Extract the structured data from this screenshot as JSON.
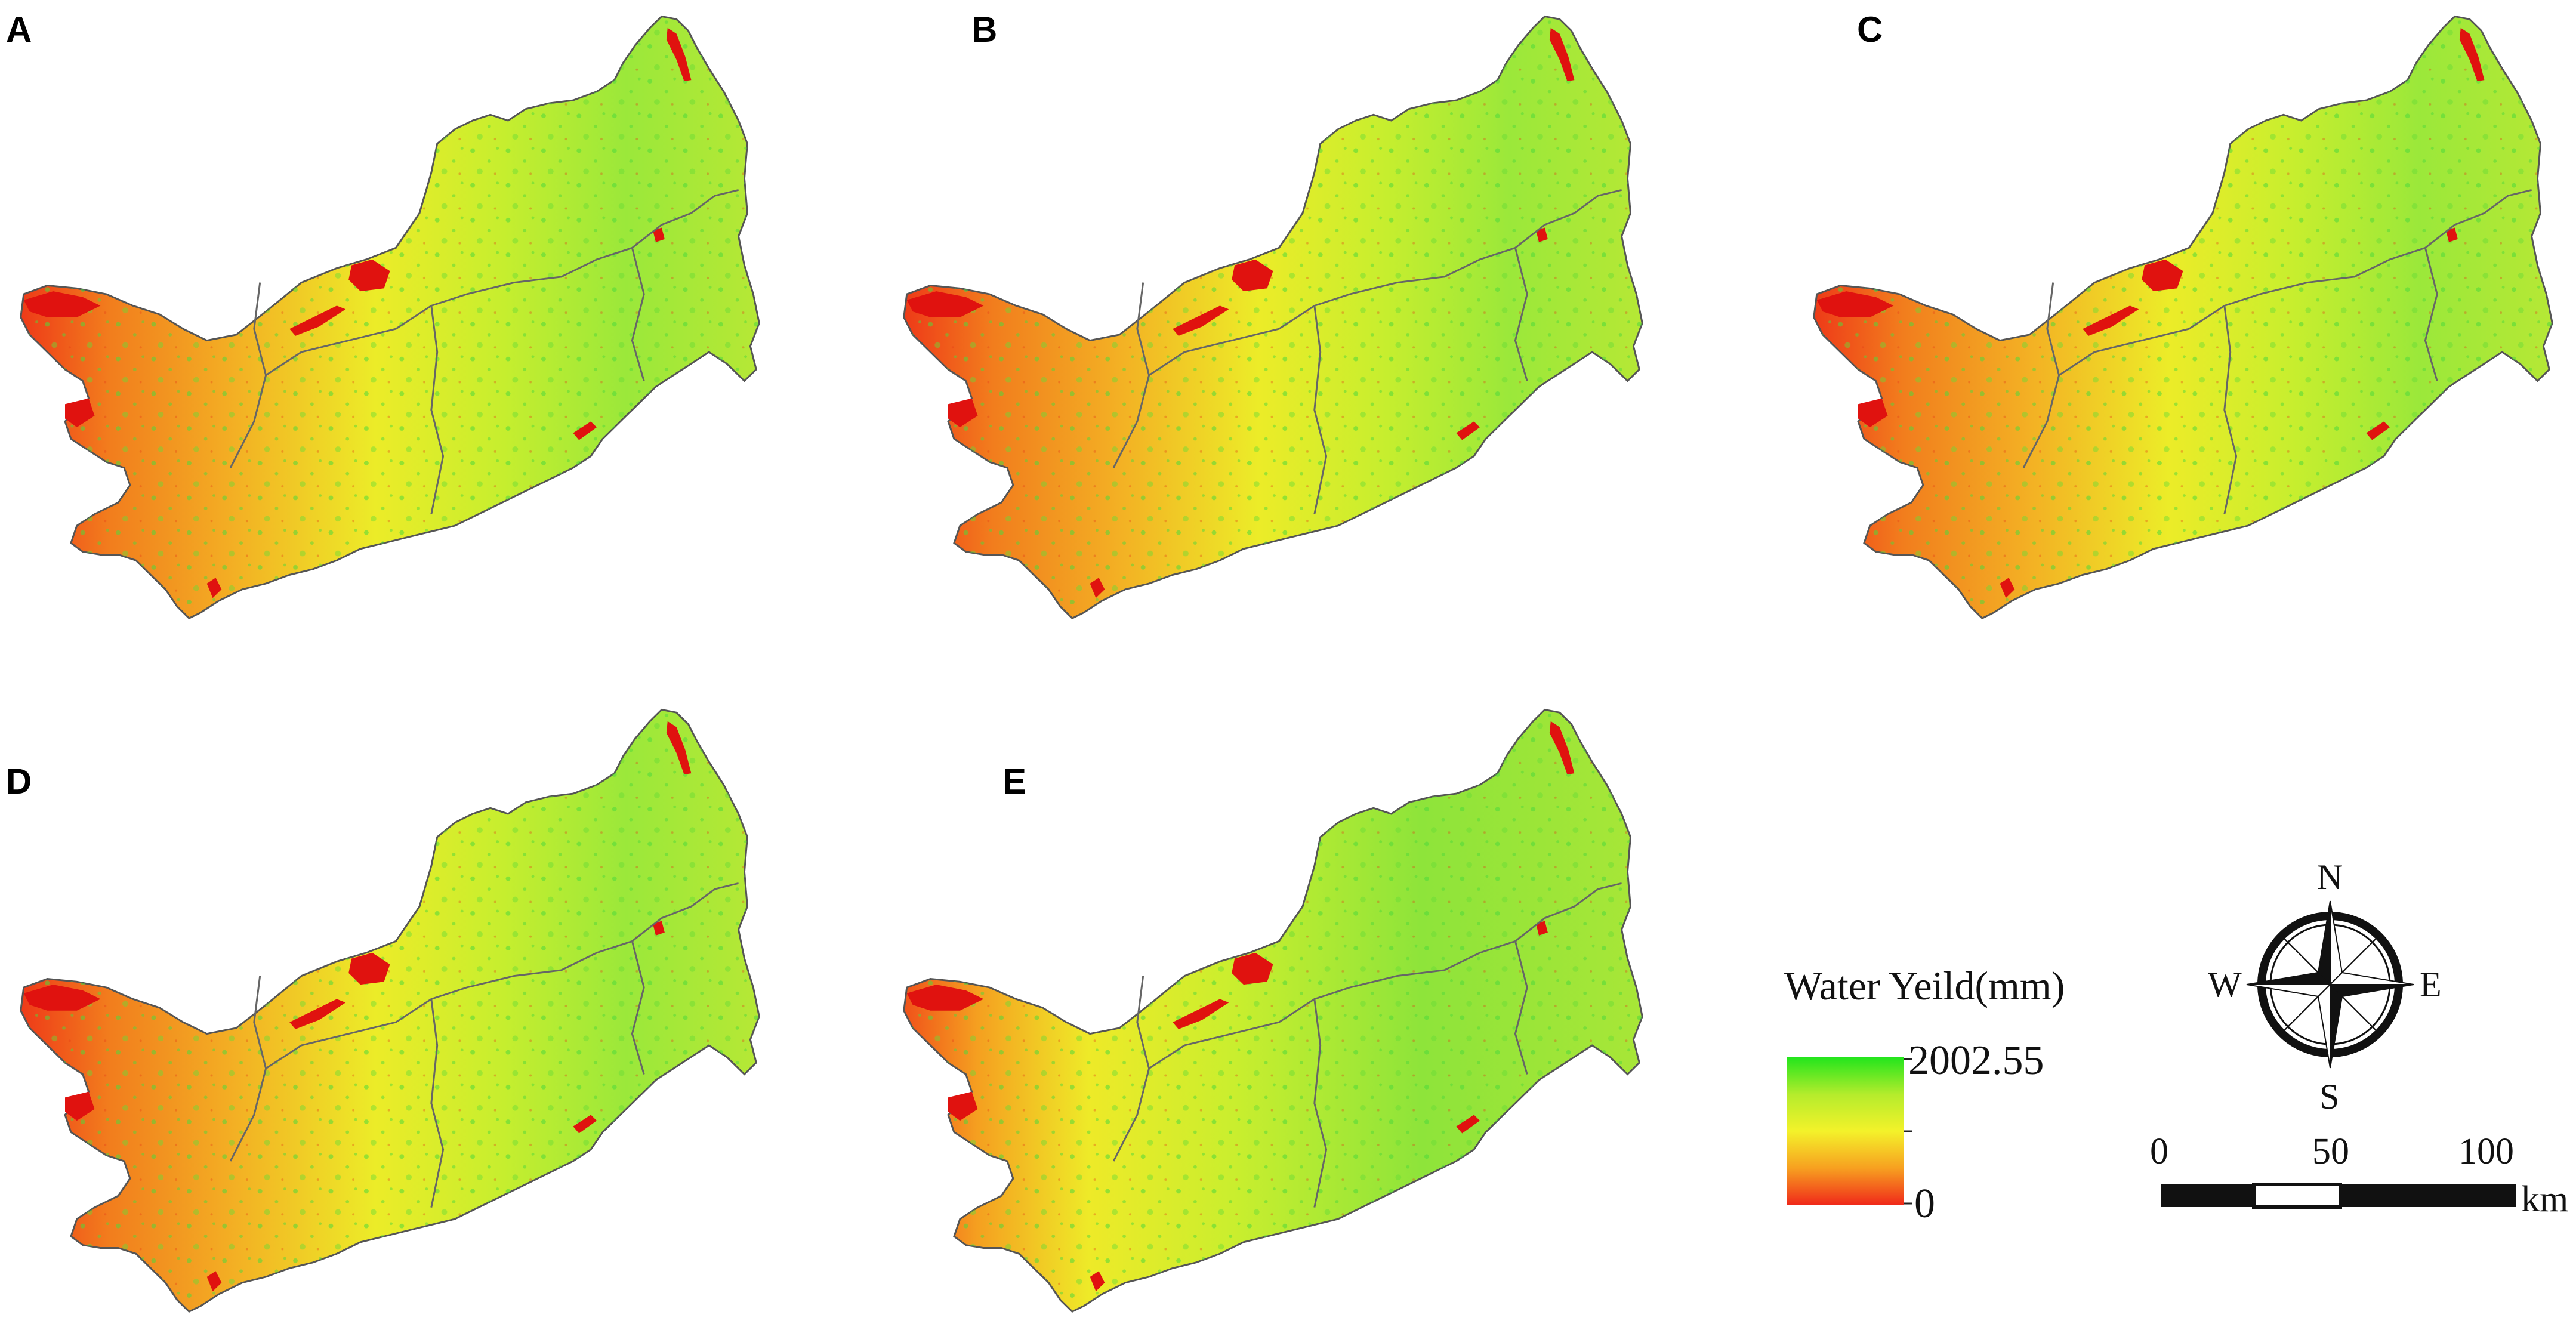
{
  "panels": [
    {
      "label": "A"
    },
    {
      "label": "B"
    },
    {
      "label": "C"
    },
    {
      "label": "D"
    },
    {
      "label": "E"
    }
  ],
  "legend": {
    "title": "Water Yeild(mm)",
    "max_label": "2002.55",
    "min_label": "0",
    "max_value": 2002.55,
    "min_value": 0,
    "colors": {
      "high": "#22e51c",
      "mid": "#f4f22a",
      "low": "#f0281a"
    }
  },
  "compass": {
    "n": "N",
    "s": "S",
    "e": "E",
    "w": "W"
  },
  "scale_bar": {
    "ticks": [
      "0",
      "50",
      "100"
    ],
    "unit": "km"
  },
  "colors": {
    "boundary": "#555555",
    "water_red": "#e0120f",
    "orange": "#f28a1e",
    "yellow": "#e9f020",
    "green": "#7fe030"
  }
}
